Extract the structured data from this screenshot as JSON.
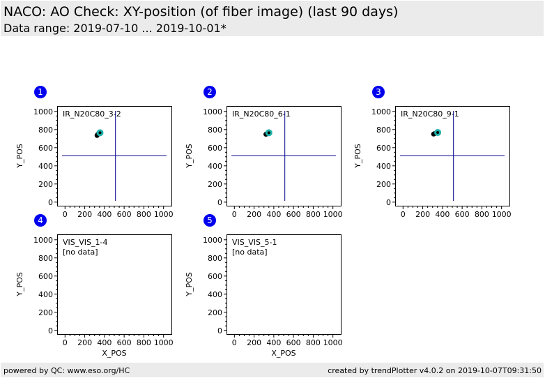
{
  "header": {
    "title": "NACO: AO Check: XY-position (of fiber image) (last 90 days)",
    "subtitle": "Data range: 2019-07-10 ... 2019-10-01*"
  },
  "footer": {
    "left": "powered by QC: www.eso.org/HC",
    "right": "created by trendPlotter v4.0.2 on 2019-10-07T09:31:50"
  },
  "colors": {
    "badge": "#0000ee",
    "crosshair": "#00008b",
    "point_black": "#000000",
    "point_teal": "#20b2aa",
    "header_bg": "#ebebeb"
  },
  "chart_data": [
    {
      "type": "scatter",
      "badge": "1",
      "label": "IR_N20C80_3-2",
      "no_data": "",
      "xlabel": "",
      "ylabel": "Y_POS",
      "xlim": [
        -80,
        1080
      ],
      "ylim": [
        -40,
        1060
      ],
      "xticks": [
        0,
        200,
        400,
        600,
        800,
        1000
      ],
      "yticks": [
        0,
        200,
        400,
        600,
        800,
        1000
      ],
      "crosshair": {
        "x": 512,
        "y": 512
      },
      "series": [
        {
          "color": "black",
          "points": [
            [
              325,
              735
            ],
            [
              330,
              745
            ],
            [
              335,
              750
            ]
          ]
        },
        {
          "color": "teal",
          "points": [
            [
              355,
              765
            ]
          ]
        }
      ]
    },
    {
      "type": "scatter",
      "badge": "2",
      "label": "IR_N20C80_6-1",
      "no_data": "",
      "xlabel": "",
      "ylabel": "Y_POS",
      "xlim": [
        -80,
        1080
      ],
      "ylim": [
        -40,
        1060
      ],
      "xticks": [
        0,
        200,
        400,
        600,
        800,
        1000
      ],
      "yticks": [
        0,
        200,
        400,
        600,
        800,
        1000
      ],
      "crosshair": {
        "x": 512,
        "y": 512
      },
      "series": [
        {
          "color": "black",
          "points": [
            [
              320,
              748
            ],
            [
              328,
              752
            ]
          ]
        },
        {
          "color": "teal",
          "points": [
            [
              350,
              765
            ]
          ]
        }
      ]
    },
    {
      "type": "scatter",
      "badge": "3",
      "label": "IR_N20C80_9-1",
      "no_data": "",
      "xlabel": "",
      "ylabel": "Y_POS",
      "xlim": [
        -80,
        1080
      ],
      "ylim": [
        -40,
        1060
      ],
      "xticks": [
        0,
        200,
        400,
        600,
        800,
        1000
      ],
      "yticks": [
        0,
        200,
        400,
        600,
        800,
        1000
      ],
      "crosshair": {
        "x": 512,
        "y": 512
      },
      "series": [
        {
          "color": "black",
          "points": [
            [
              310,
              750
            ],
            [
              318,
              755
            ]
          ]
        },
        {
          "color": "teal",
          "points": [
            [
              352,
              768
            ]
          ]
        }
      ]
    },
    {
      "type": "scatter",
      "badge": "4",
      "label": "VIS_VIS_1-4",
      "no_data": "[no data]",
      "xlabel": "X_POS",
      "ylabel": "Y_POS",
      "xlim": [
        -80,
        1080
      ],
      "ylim": [
        -40,
        1060
      ],
      "xticks": [
        0,
        200,
        400,
        600,
        800,
        1000
      ],
      "yticks": [
        0,
        200,
        400,
        600,
        800,
        1000
      ],
      "crosshair": null,
      "series": []
    },
    {
      "type": "scatter",
      "badge": "5",
      "label": "VIS_VIS_5-1",
      "no_data": "[no data]",
      "xlabel": "X_POS",
      "ylabel": "Y_POS",
      "xlim": [
        -80,
        1080
      ],
      "ylim": [
        -40,
        1060
      ],
      "xticks": [
        0,
        200,
        400,
        600,
        800,
        1000
      ],
      "yticks": [
        0,
        200,
        400,
        600,
        800,
        1000
      ],
      "crosshair": null,
      "series": []
    }
  ]
}
